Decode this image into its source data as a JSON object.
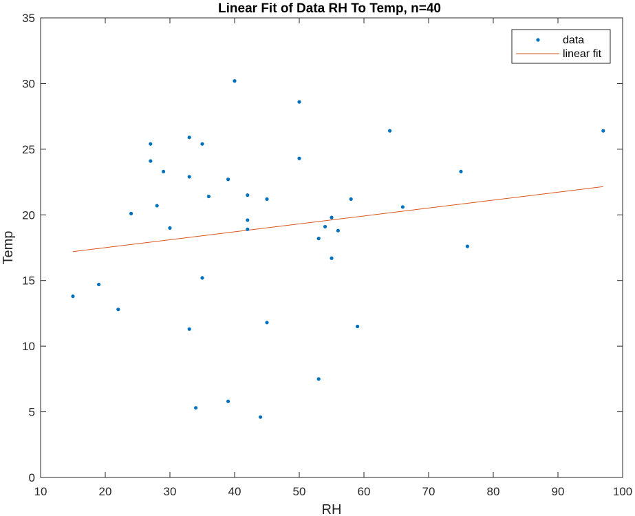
{
  "chart_data": {
    "type": "scatter",
    "title": "Linear Fit of Data RH To Temp, n=40",
    "xlabel": "RH",
    "ylabel": "Temp",
    "xlim": [
      10,
      100
    ],
    "ylim": [
      0,
      35
    ],
    "xticks": [
      10,
      20,
      30,
      40,
      50,
      60,
      70,
      80,
      90,
      100
    ],
    "yticks": [
      0,
      5,
      10,
      15,
      20,
      25,
      30,
      35
    ],
    "grid": false,
    "legend_position": "top-right",
    "legend": [
      "data",
      "linear fit"
    ],
    "series": [
      {
        "name": "data",
        "kind": "scatter",
        "color": "#0072BD",
        "points": [
          [
            15,
            13.8
          ],
          [
            19,
            14.7
          ],
          [
            22,
            12.8
          ],
          [
            24,
            20.1
          ],
          [
            27,
            25.4
          ],
          [
            27,
            24.1
          ],
          [
            28,
            20.7
          ],
          [
            29,
            23.3
          ],
          [
            30,
            19.0
          ],
          [
            33,
            25.9
          ],
          [
            33,
            22.9
          ],
          [
            33,
            11.3
          ],
          [
            34,
            5.3
          ],
          [
            35,
            25.4
          ],
          [
            35,
            15.2
          ],
          [
            36,
            21.4
          ],
          [
            39,
            22.7
          ],
          [
            39,
            5.8
          ],
          [
            40,
            30.2
          ],
          [
            42,
            21.5
          ],
          [
            42,
            19.6
          ],
          [
            42,
            18.9
          ],
          [
            44,
            4.6
          ],
          [
            45,
            21.2
          ],
          [
            45,
            11.8
          ],
          [
            50,
            28.6
          ],
          [
            50,
            24.3
          ],
          [
            53,
            18.2
          ],
          [
            53,
            7.5
          ],
          [
            54,
            19.1
          ],
          [
            55,
            19.8
          ],
          [
            55,
            16.7
          ],
          [
            56,
            18.8
          ],
          [
            58,
            21.2
          ],
          [
            59,
            11.5
          ],
          [
            64,
            26.4
          ],
          [
            66,
            20.6
          ],
          [
            75,
            23.3
          ],
          [
            76,
            17.6
          ],
          [
            97,
            26.4
          ]
        ]
      },
      {
        "name": "linear fit",
        "kind": "line",
        "color": "#D95319",
        "points": [
          [
            15,
            17.2
          ],
          [
            97,
            22.15
          ]
        ]
      }
    ]
  }
}
